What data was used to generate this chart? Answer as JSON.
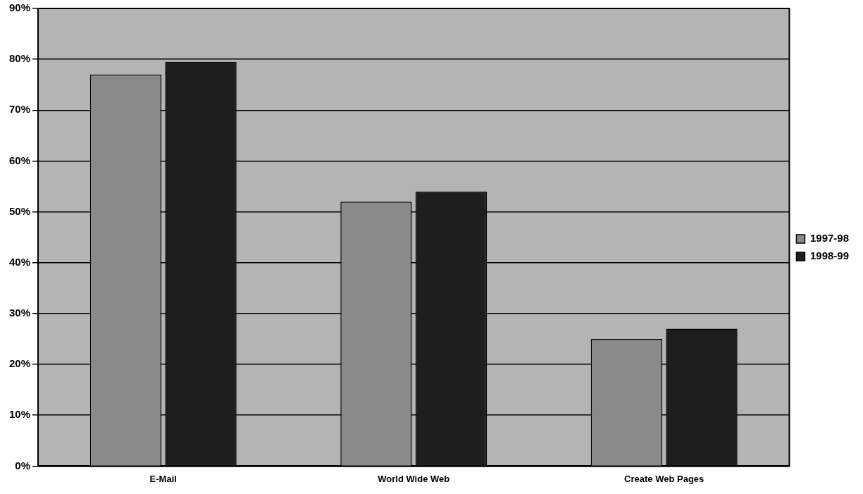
{
  "chart_data": {
    "type": "bar",
    "categories": [
      "E-Mail",
      "World Wide Web",
      "Create Web Pages"
    ],
    "series": [
      {
        "name": "1997-98",
        "color": "#8a8a8a",
        "values": [
          77,
          52,
          25
        ]
      },
      {
        "name": "1998-99",
        "color": "#1e1e1e",
        "values": [
          79.5,
          54,
          27
        ]
      }
    ],
    "ylim": [
      0,
      90
    ],
    "yticks": [
      {
        "value": 0,
        "label": "0%"
      },
      {
        "value": 10,
        "label": "10%"
      },
      {
        "value": 20,
        "label": "20%"
      },
      {
        "value": 30,
        "label": "30%"
      },
      {
        "value": 40,
        "label": "40%"
      },
      {
        "value": 50,
        "label": "50%"
      },
      {
        "value": 60,
        "label": "60%"
      },
      {
        "value": 70,
        "label": "70%"
      },
      {
        "value": 80,
        "label": "80%"
      },
      {
        "value": 90,
        "label": "90%"
      }
    ],
    "grid": "y",
    "legend": "right"
  }
}
